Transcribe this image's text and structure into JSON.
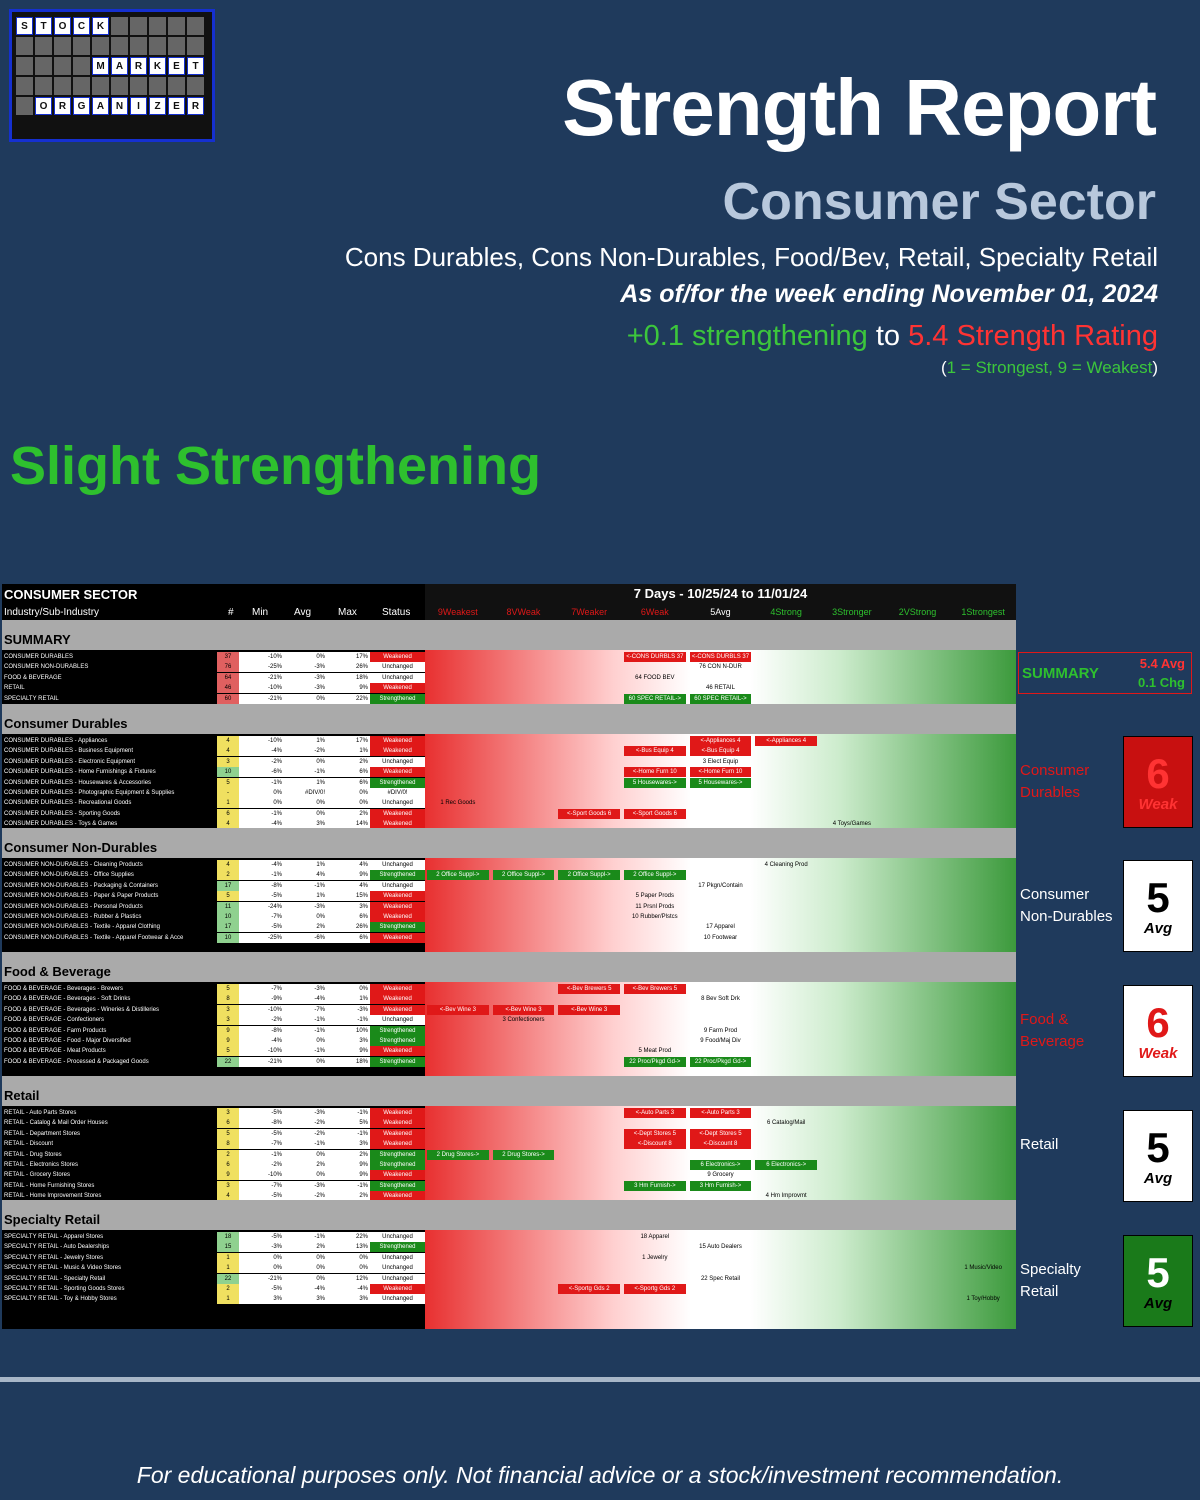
{
  "logo": {
    "row1": [
      "S",
      "T",
      "O",
      "C",
      "K"
    ],
    "row2": [
      "M",
      "A",
      "R",
      "K",
      "E",
      "T"
    ],
    "row3": [
      "O",
      "R",
      "G",
      "A",
      "N",
      "I",
      "Z",
      "E",
      "R"
    ]
  },
  "header": {
    "title": "Strength Report",
    "sector": "Consumer Sector",
    "subsectors": "Cons Durables, Cons Non-Durables, Food/Bev, Retail, Specialty Retail",
    "as_of": "As of/for the week ending November 01, 2024",
    "change_part1": "+0.1 strengthening",
    "change_part2": "to",
    "change_part3": "5.4 Strength Rating",
    "scale_open": "(",
    "scale_text": "1 = Strongest, 9 = Weakest",
    "scale_close": ")"
  },
  "verdict": "Slight Strengthening",
  "table": {
    "title": "CONSUMER SECTOR",
    "subtitle": "Industry/Sub-Industry",
    "cols": {
      "count": "#",
      "min": "Min",
      "avg": "Avg",
      "max": "Max",
      "status": "Status"
    },
    "period": "7 Days - 10/25/24 to 11/01/24",
    "scale_cols": [
      "9Weakest",
      "8VWeak",
      "7Weaker",
      "6Weak",
      "5Avg",
      "4Strong",
      "3Stronger",
      "2VStrong",
      "1Strongest"
    ]
  },
  "summary": {
    "label": "SUMMARY",
    "avg": "5.4 Avg",
    "chg": "0.1 Chg"
  },
  "groups": [
    {
      "name": "SUMMARY",
      "rows": [
        {
          "n": "CONSUMER DURABLES",
          "c": "37",
          "mn": "-10%",
          "av": "0%",
          "mx": "17%",
          "s": "Weakened"
        },
        {
          "n": "CONSUMER NON-DURABLES",
          "c": "76",
          "mn": "-25%",
          "av": "-3%",
          "mx": "26%",
          "s": "Unchanged"
        },
        {
          "n": "FOOD & BEVERAGE",
          "c": "64",
          "mn": "-21%",
          "av": "-3%",
          "mx": "18%",
          "s": "Unchanged"
        },
        {
          "n": "RETAIL",
          "c": "46",
          "mn": "-10%",
          "av": "-3%",
          "mx": "9%",
          "s": "Weakened"
        },
        {
          "n": "SPECIALTY RETAIL",
          "c": "60",
          "mn": "-21%",
          "av": "0%",
          "mx": "22%",
          "s": "Strengthened"
        }
      ]
    },
    {
      "name": "Consumer Durables",
      "rows": [
        {
          "n": "CONSUMER DURABLES - Appliances",
          "c": "4",
          "mn": "-10%",
          "av": "1%",
          "mx": "17%",
          "s": "Weakened"
        },
        {
          "n": "CONSUMER DURABLES - Business Equipment",
          "c": "4",
          "mn": "-4%",
          "av": "-2%",
          "mx": "1%",
          "s": "Weakened"
        },
        {
          "n": "CONSUMER DURABLES - Electronic Equipment",
          "c": "3",
          "mn": "-2%",
          "av": "0%",
          "mx": "2%",
          "s": "Unchanged"
        },
        {
          "n": "CONSUMER DURABLES - Home Furnishings & Fixtures",
          "c": "10",
          "mn": "-6%",
          "av": "-1%",
          "mx": "6%",
          "s": "Weakened"
        },
        {
          "n": "CONSUMER DURABLES - Housewares & Accessories",
          "c": "5",
          "mn": "-1%",
          "av": "1%",
          "mx": "6%",
          "s": "Strengthened"
        },
        {
          "n": "CONSUMER DURABLES - Photographic Equipment & Supplies",
          "c": "-",
          "mn": "0%",
          "av": "#DIV/0!",
          "mx": "0%",
          "s": "#DIV/0!"
        },
        {
          "n": "CONSUMER DURABLES - Recreational Goods",
          "c": "1",
          "mn": "0%",
          "av": "0%",
          "mx": "0%",
          "s": "Unchanged"
        },
        {
          "n": "CONSUMER DURABLES - Sporting Goods",
          "c": "6",
          "mn": "-1%",
          "av": "0%",
          "mx": "2%",
          "s": "Weakened"
        },
        {
          "n": "CONSUMER DURABLES - Toys & Games",
          "c": "4",
          "mn": "-4%",
          "av": "3%",
          "mx": "14%",
          "s": "Weakened"
        }
      ]
    },
    {
      "name": "Consumer Non-Durables",
      "rows": [
        {
          "n": "CONSUMER NON-DURABLES - Cleaning Products",
          "c": "4",
          "mn": "-4%",
          "av": "1%",
          "mx": "4%",
          "s": "Unchanged"
        },
        {
          "n": "CONSUMER NON-DURABLES - Office Supplies",
          "c": "2",
          "mn": "-1%",
          "av": "4%",
          "mx": "9%",
          "s": "Strengthened"
        },
        {
          "n": "CONSUMER NON-DURABLES - Packaging & Containers",
          "c": "17",
          "mn": "-8%",
          "av": "-1%",
          "mx": "4%",
          "s": "Unchanged"
        },
        {
          "n": "CONSUMER NON-DURABLES - Paper & Paper Products",
          "c": "5",
          "mn": "-5%",
          "av": "1%",
          "mx": "15%",
          "s": "Weakened"
        },
        {
          "n": "CONSUMER NON-DURABLES - Personal Products",
          "c": "11",
          "mn": "-24%",
          "av": "-3%",
          "mx": "3%",
          "s": "Weakened"
        },
        {
          "n": "CONSUMER NON-DURABLES - Rubber & Plastics",
          "c": "10",
          "mn": "-7%",
          "av": "0%",
          "mx": "6%",
          "s": "Weakened"
        },
        {
          "n": "CONSUMER NON-DURABLES - Textile - Apparel Clothing",
          "c": "17",
          "mn": "-5%",
          "av": "2%",
          "mx": "26%",
          "s": "Strengthened"
        },
        {
          "n": "CONSUMER NON-DURABLES - Textile - Apparel Footwear & Acce",
          "c": "10",
          "mn": "-25%",
          "av": "-6%",
          "mx": "6%",
          "s": "Weakened"
        }
      ]
    },
    {
      "name": "Food & Beverage",
      "rows": [
        {
          "n": "FOOD & BEVERAGE - Beverages - Brewers",
          "c": "5",
          "mn": "-7%",
          "av": "-3%",
          "mx": "0%",
          "s": "Weakened"
        },
        {
          "n": "FOOD & BEVERAGE - Beverages - Soft Drinks",
          "c": "8",
          "mn": "-9%",
          "av": "-4%",
          "mx": "1%",
          "s": "Weakened"
        },
        {
          "n": "FOOD & BEVERAGE - Beverages - Wineries & Distilleries",
          "c": "3",
          "mn": "-10%",
          "av": "-7%",
          "mx": "-3%",
          "s": "Weakened"
        },
        {
          "n": "FOOD & BEVERAGE - Confectioners",
          "c": "3",
          "mn": "-2%",
          "av": "-1%",
          "mx": "-1%",
          "s": "Unchanged"
        },
        {
          "n": "FOOD & BEVERAGE - Farm Products",
          "c": "9",
          "mn": "-8%",
          "av": "-1%",
          "mx": "10%",
          "s": "Strengthened"
        },
        {
          "n": "FOOD & BEVERAGE - Food - Major Diversified",
          "c": "9",
          "mn": "-4%",
          "av": "0%",
          "mx": "3%",
          "s": "Strengthened"
        },
        {
          "n": "FOOD & BEVERAGE - Meat Products",
          "c": "5",
          "mn": "-10%",
          "av": "-1%",
          "mx": "9%",
          "s": "Weakened"
        },
        {
          "n": "FOOD & BEVERAGE - Processed & Packaged Goods",
          "c": "22",
          "mn": "-21%",
          "av": "0%",
          "mx": "18%",
          "s": "Strengthened"
        }
      ]
    },
    {
      "name": "Retail",
      "rows": [
        {
          "n": "RETAIL - Auto Parts Stores",
          "c": "3",
          "mn": "-5%",
          "av": "-3%",
          "mx": "-1%",
          "s": "Weakened"
        },
        {
          "n": "RETAIL - Catalog & Mail Order Houses",
          "c": "6",
          "mn": "-8%",
          "av": "-2%",
          "mx": "5%",
          "s": "Weakened"
        },
        {
          "n": "RETAIL - Department Stores",
          "c": "5",
          "mn": "-5%",
          "av": "-2%",
          "mx": "-1%",
          "s": "Weakened"
        },
        {
          "n": "RETAIL - Discount",
          "c": "8",
          "mn": "-7%",
          "av": "-1%",
          "mx": "3%",
          "s": "Weakened"
        },
        {
          "n": "RETAIL - Drug Stores",
          "c": "2",
          "mn": "-1%",
          "av": "0%",
          "mx": "2%",
          "s": "Strengthened"
        },
        {
          "n": "RETAIL - Electronics Stores",
          "c": "6",
          "mn": "-2%",
          "av": "2%",
          "mx": "9%",
          "s": "Strengthened"
        },
        {
          "n": "RETAIL - Grocery Stores",
          "c": "9",
          "mn": "-10%",
          "av": "0%",
          "mx": "9%",
          "s": "Weakened"
        },
        {
          "n": "RETAIL - Home Furnishing Stores",
          "c": "3",
          "mn": "-7%",
          "av": "-3%",
          "mx": "-1%",
          "s": "Strengthened"
        },
        {
          "n": "RETAIL - Home Improvement Stores",
          "c": "4",
          "mn": "-5%",
          "av": "-2%",
          "mx": "2%",
          "s": "Weakened"
        }
      ]
    },
    {
      "name": "Specialty Retail",
      "rows": [
        {
          "n": "SPECIALTY RETAIL - Apparel Stores",
          "c": "18",
          "mn": "-5%",
          "av": "-1%",
          "mx": "22%",
          "s": "Unchanged"
        },
        {
          "n": "SPECIALTY RETAIL - Auto Dealerships",
          "c": "15",
          "mn": "-3%",
          "av": "2%",
          "mx": "13%",
          "s": "Strengthened"
        },
        {
          "n": "SPECIALTY RETAIL - Jewelry Stores",
          "c": "1",
          "mn": "0%",
          "av": "0%",
          "mx": "0%",
          "s": "Unchanged"
        },
        {
          "n": "SPECIALTY RETAIL - Music & Video Stores",
          "c": "1",
          "mn": "0%",
          "av": "0%",
          "mx": "0%",
          "s": "Unchanged"
        },
        {
          "n": "SPECIALTY RETAIL - Specialty Retail",
          "c": "22",
          "mn": "-21%",
          "av": "0%",
          "mx": "12%",
          "s": "Unchanged"
        },
        {
          "n": "SPECIALTY RETAIL - Sporting Goods Stores",
          "c": "2",
          "mn": "-5%",
          "av": "-4%",
          "mx": "-4%",
          "s": "Weakened"
        },
        {
          "n": "SPECIALTY RETAIL - Toy & Hobby Stores",
          "c": "1",
          "mn": "3%",
          "av": "3%",
          "mx": "3%",
          "s": "Unchanged"
        }
      ]
    }
  ],
  "tags": [
    {
      "g": 0,
      "r": 0,
      "col": 3,
      "t": "<-CONS DURBLS 37",
      "k": "r"
    },
    {
      "g": 0,
      "r": 0,
      "col": 4,
      "t": "<-CONS DURBLS 37",
      "k": "r"
    },
    {
      "g": 0,
      "r": 1,
      "col": 4,
      "t": "76 CON N-DUR",
      "k": "n"
    },
    {
      "g": 0,
      "r": 2,
      "col": 3,
      "t": "64 FOOD BEV",
      "k": "n"
    },
    {
      "g": 0,
      "r": 3,
      "col": 4,
      "t": "46 RETAIL",
      "k": "n"
    },
    {
      "g": 0,
      "r": 4,
      "col": 3,
      "t": "60 SPEC RETAIL->",
      "k": "g"
    },
    {
      "g": 0,
      "r": 4,
      "col": 4,
      "t": "60 SPEC RETAIL->",
      "k": "g"
    },
    {
      "g": 1,
      "r": 0,
      "col": 4,
      "t": "<-Appliances 4",
      "k": "r"
    },
    {
      "g": 1,
      "r": 0,
      "col": 5,
      "t": "<-Appliances 4",
      "k": "r"
    },
    {
      "g": 1,
      "r": 1,
      "col": 3,
      "t": "<-Bus Equip 4",
      "k": "r"
    },
    {
      "g": 1,
      "r": 1,
      "col": 4,
      "t": "<-Bus Equip 4",
      "k": "r"
    },
    {
      "g": 1,
      "r": 2,
      "col": 4,
      "t": "3 Elect Equip",
      "k": "n"
    },
    {
      "g": 1,
      "r": 3,
      "col": 3,
      "t": "<-Home Furn 10",
      "k": "r"
    },
    {
      "g": 1,
      "r": 3,
      "col": 4,
      "t": "<-Home Furn 10",
      "k": "r"
    },
    {
      "g": 1,
      "r": 4,
      "col": 3,
      "t": "5 Housewares->",
      "k": "g"
    },
    {
      "g": 1,
      "r": 4,
      "col": 4,
      "t": "5 Housewares->",
      "k": "g"
    },
    {
      "g": 1,
      "r": 6,
      "col": 0,
      "t": "1 Rec Goods",
      "k": "n"
    },
    {
      "g": 1,
      "r": 7,
      "col": 2,
      "t": "<-Sport Goods 6",
      "k": "r"
    },
    {
      "g": 1,
      "r": 7,
      "col": 3,
      "t": "<-Sport Goods 6",
      "k": "r"
    },
    {
      "g": 1,
      "r": 8,
      "col": 6,
      "t": "4 Toys/Games",
      "k": "n"
    },
    {
      "g": 2,
      "r": 0,
      "col": 5,
      "t": "4 Cleaning Prod",
      "k": "n"
    },
    {
      "g": 2,
      "r": 1,
      "col": 0,
      "t": "2 Office Suppl->",
      "k": "g"
    },
    {
      "g": 2,
      "r": 1,
      "col": 1,
      "t": "2 Office Suppl->",
      "k": "g"
    },
    {
      "g": 2,
      "r": 1,
      "col": 2,
      "t": "2 Office Suppl->",
      "k": "g"
    },
    {
      "g": 2,
      "r": 1,
      "col": 3,
      "t": "2 Office Suppl->",
      "k": "g"
    },
    {
      "g": 2,
      "r": 2,
      "col": 4,
      "t": "17 Pkgn/Contain",
      "k": "n"
    },
    {
      "g": 2,
      "r": 3,
      "col": 3,
      "t": "5 Paper Prods",
      "k": "n"
    },
    {
      "g": 2,
      "r": 4,
      "col": 3,
      "t": "11 Prsnl Prods",
      "k": "n"
    },
    {
      "g": 2,
      "r": 5,
      "col": 3,
      "t": "10 Rubber/Plstcs",
      "k": "n"
    },
    {
      "g": 2,
      "r": 6,
      "col": 4,
      "t": "17 Apparel",
      "k": "n"
    },
    {
      "g": 2,
      "r": 7,
      "col": 4,
      "t": "10 Footwear",
      "k": "n"
    },
    {
      "g": 3,
      "r": 0,
      "col": 2,
      "t": "<-Bev Brewers 5",
      "k": "r"
    },
    {
      "g": 3,
      "r": 0,
      "col": 3,
      "t": "<-Bev Brewers 5",
      "k": "r"
    },
    {
      "g": 3,
      "r": 1,
      "col": 4,
      "t": "8 Bev Soft Drk",
      "k": "n"
    },
    {
      "g": 3,
      "r": 2,
      "col": 0,
      "t": "<-Bev Wine 3",
      "k": "r"
    },
    {
      "g": 3,
      "r": 2,
      "col": 1,
      "t": "<-Bev Wine 3",
      "k": "r"
    },
    {
      "g": 3,
      "r": 2,
      "col": 2,
      "t": "<-Bev Wine 3",
      "k": "r"
    },
    {
      "g": 3,
      "r": 3,
      "col": 1,
      "t": "3 Confectioners",
      "k": "n"
    },
    {
      "g": 3,
      "r": 4,
      "col": 4,
      "t": "9 Farm Prod",
      "k": "n"
    },
    {
      "g": 3,
      "r": 5,
      "col": 4,
      "t": "9 Food/Maj Div",
      "k": "n"
    },
    {
      "g": 3,
      "r": 6,
      "col": 3,
      "t": "5 Meat Prod",
      "k": "n"
    },
    {
      "g": 3,
      "r": 7,
      "col": 3,
      "t": "22 Proc/Pkgd Gd->",
      "k": "g"
    },
    {
      "g": 3,
      "r": 7,
      "col": 4,
      "t": "22 Proc/Pkgd Gd->",
      "k": "g"
    },
    {
      "g": 4,
      "r": 0,
      "col": 3,
      "t": "<-Auto Parts 3",
      "k": "r"
    },
    {
      "g": 4,
      "r": 0,
      "col": 4,
      "t": "<-Auto Parts 3",
      "k": "r"
    },
    {
      "g": 4,
      "r": 1,
      "col": 5,
      "t": "6 Catalog/Mail",
      "k": "n"
    },
    {
      "g": 4,
      "r": 2,
      "col": 3,
      "t": "<-Dept Stores 5",
      "k": "r"
    },
    {
      "g": 4,
      "r": 2,
      "col": 4,
      "t": "<-Dept Stores 5",
      "k": "r"
    },
    {
      "g": 4,
      "r": 3,
      "col": 3,
      "t": "<-Discount 8",
      "k": "r"
    },
    {
      "g": 4,
      "r": 3,
      "col": 4,
      "t": "<-Discount 8",
      "k": "r"
    },
    {
      "g": 4,
      "r": 4,
      "col": 0,
      "t": "2 Drug Stores->",
      "k": "g"
    },
    {
      "g": 4,
      "r": 4,
      "col": 1,
      "t": "2 Drug Stores->",
      "k": "g"
    },
    {
      "g": 4,
      "r": 5,
      "col": 4,
      "t": "6 Electronics->",
      "k": "g"
    },
    {
      "g": 4,
      "r": 5,
      "col": 5,
      "t": "6 Electronics->",
      "k": "g"
    },
    {
      "g": 4,
      "r": 6,
      "col": 4,
      "t": "9 Grocery",
      "k": "n"
    },
    {
      "g": 4,
      "r": 7,
      "col": 3,
      "t": "3 Hm Furnish->",
      "k": "g"
    },
    {
      "g": 4,
      "r": 7,
      "col": 4,
      "t": "3 Hm Furnish->",
      "k": "g"
    },
    {
      "g": 4,
      "r": 8,
      "col": 5,
      "t": "4 Hm Improvmt",
      "k": "n"
    },
    {
      "g": 5,
      "r": 0,
      "col": 3,
      "t": "18 Apparel",
      "k": "n"
    },
    {
      "g": 5,
      "r": 1,
      "col": 4,
      "t": "15 Auto Dealers",
      "k": "n"
    },
    {
      "g": 5,
      "r": 2,
      "col": 3,
      "t": "1 Jewelry",
      "k": "n"
    },
    {
      "g": 5,
      "r": 3,
      "col": 8,
      "t": "1 Music/Video",
      "k": "n"
    },
    {
      "g": 5,
      "r": 4,
      "col": 4,
      "t": "22 Spec Retail",
      "k": "n"
    },
    {
      "g": 5,
      "r": 5,
      "col": 2,
      "t": "<-Sportg Gds 2",
      "k": "r"
    },
    {
      "g": 5,
      "r": 5,
      "col": 3,
      "t": "<-Sportg Gds 2",
      "k": "r"
    },
    {
      "g": 5,
      "r": 6,
      "col": 8,
      "t": "1 Toy/Hobby",
      "k": "n"
    }
  ],
  "side": [
    {
      "label": "Consumer Durables",
      "num": "6",
      "word": "Weak",
      "tone": "weak-red"
    },
    {
      "label": "Consumer Non-Durables",
      "num": "5",
      "word": "Avg",
      "tone": "avg"
    },
    {
      "label": "Food & Beverage",
      "num": "6",
      "word": "Weak",
      "tone": "weak-white"
    },
    {
      "label": "Retail",
      "num": "5",
      "word": "Avg",
      "tone": "avg"
    },
    {
      "label": "Specialty Retail",
      "num": "5",
      "word": "Avg",
      "tone": "avg-green"
    }
  ],
  "colors": {
    "weak": "#e01818",
    "strong": "#1a8a1a",
    "bg": "#1f3a5c"
  },
  "footer": "For educational purposes only. Not financial advice or a stock/investment recommendation."
}
